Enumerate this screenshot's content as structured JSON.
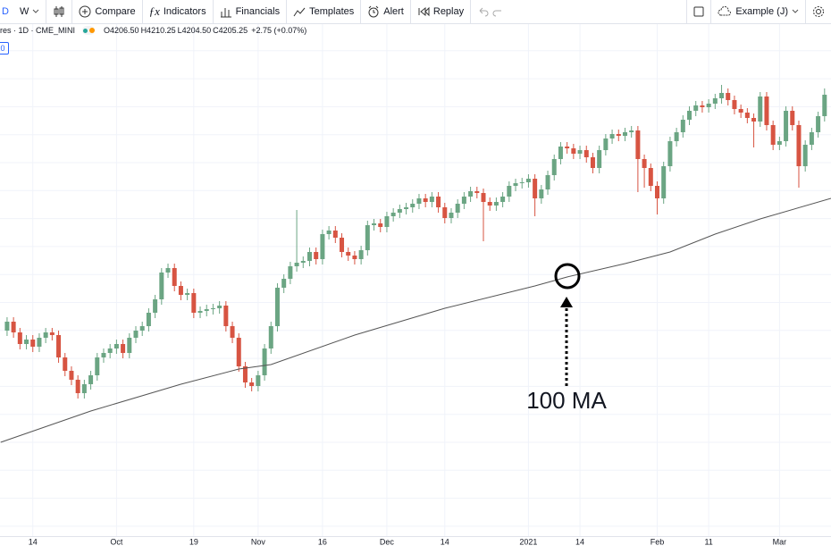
{
  "toolbar": {
    "interval_day": "D",
    "interval_week": "W",
    "compare": "Compare",
    "indicators": "Indicators",
    "financials": "Financials",
    "templates": "Templates",
    "alert": "Alert",
    "replay": "Replay",
    "layout": "Example (J)"
  },
  "legend": {
    "symbol": "res · 1D · CME_MINI",
    "open": "O4206.50",
    "high": "H4210.25",
    "low": "L4204.50",
    "close": "C4205.25",
    "change": "+2.75 (+0.07%)",
    "badge": "0"
  },
  "chart_data": {
    "type": "candlestick",
    "up_color": "#6ba583",
    "down_color": "#d75442",
    "xlim": [
      -1.1,
      128
    ],
    "ylim": [
      2960,
      4110
    ],
    "xticks": [
      {
        "value": 4,
        "label": "14"
      },
      {
        "value": 17,
        "label": "Oct"
      },
      {
        "value": 29,
        "label": "19"
      },
      {
        "value": 39,
        "label": "Nov"
      },
      {
        "value": 49,
        "label": "16"
      },
      {
        "value": 59,
        "label": "Dec"
      },
      {
        "value": 68,
        "label": "14"
      },
      {
        "value": 81,
        "label": "2021"
      },
      {
        "value": 89,
        "label": "14"
      },
      {
        "value": 101,
        "label": "Feb"
      },
      {
        "value": 109,
        "label": "11"
      },
      {
        "value": 120,
        "label": "Mar"
      }
    ],
    "grid": true,
    "open": [
      3420,
      3440,
      3416,
      3390,
      3400,
      3384,
      3404,
      3416,
      3410,
      3360,
      3330,
      3310,
      3280,
      3300,
      3320,
      3360,
      3370,
      3380,
      3390,
      3370,
      3404,
      3420,
      3430,
      3460,
      3490,
      3550,
      3560,
      3520,
      3500,
      3504,
      3460,
      3464,
      3468,
      3470,
      3476,
      3430,
      3404,
      3340,
      3304,
      3296,
      3320,
      3380,
      3430,
      3516,
      3536,
      3564,
      3572,
      3576,
      3596,
      3580,
      3636,
      3644,
      3628,
      3596,
      3588,
      3580,
      3600,
      3656,
      3660,
      3652,
      3676,
      3684,
      3692,
      3696,
      3704,
      3716,
      3708,
      3720,
      3696,
      3672,
      3684,
      3704,
      3720,
      3732,
      3728,
      3708,
      3700,
      3708,
      3720,
      3744,
      3750,
      3752,
      3760,
      3716,
      3736,
      3768,
      3804,
      3832,
      3828,
      3816,
      3824,
      3808,
      3784,
      3824,
      3850,
      3860,
      3856,
      3864,
      3868,
      3804,
      3784,
      3744,
      3716,
      3788,
      3844,
      3864,
      3892,
      3912,
      3924,
      3920,
      3928,
      3940,
      3952,
      3936,
      3916,
      3908,
      3896,
      3888,
      3944,
      3880,
      3836,
      3844,
      3912,
      3880,
      3788,
      3836,
      3864,
      3900
    ],
    "high": [
      3450,
      3450,
      3426,
      3410,
      3410,
      3414,
      3426,
      3426,
      3420,
      3370,
      3340,
      3320,
      3310,
      3330,
      3370,
      3380,
      3390,
      3400,
      3400,
      3414,
      3430,
      3440,
      3470,
      3500,
      3560,
      3570,
      3570,
      3530,
      3514,
      3514,
      3474,
      3478,
      3480,
      3486,
      3486,
      3440,
      3414,
      3350,
      3314,
      3330,
      3390,
      3440,
      3526,
      3546,
      3574,
      3690,
      3586,
      3606,
      3606,
      3646,
      3654,
      3654,
      3638,
      3606,
      3598,
      3610,
      3666,
      3670,
      3670,
      3686,
      3694,
      3702,
      3706,
      3714,
      3726,
      3726,
      3730,
      3730,
      3706,
      3694,
      3714,
      3730,
      3742,
      3742,
      3738,
      3718,
      3718,
      3730,
      3754,
      3760,
      3762,
      3770,
      3770,
      3746,
      3778,
      3814,
      3842,
      3842,
      3838,
      3834,
      3834,
      3818,
      3834,
      3860,
      3870,
      3870,
      3874,
      3878,
      3878,
      3814,
      3794,
      3754,
      3798,
      3854,
      3874,
      3902,
      3922,
      3934,
      3934,
      3938,
      3950,
      3970,
      3962,
      3946,
      3926,
      3918,
      3906,
      3954,
      3954,
      3890,
      3854,
      3922,
      3922,
      3890,
      3846,
      3874,
      3910,
      3962
    ],
    "low": [
      3408,
      3404,
      3378,
      3378,
      3372,
      3372,
      3392,
      3398,
      3348,
      3318,
      3298,
      3268,
      3268,
      3288,
      3308,
      3348,
      3358,
      3368,
      3358,
      3358,
      3392,
      3408,
      3418,
      3448,
      3478,
      3538,
      3508,
      3488,
      3488,
      3448,
      3448,
      3452,
      3456,
      3458,
      3418,
      3392,
      3328,
      3292,
      3284,
      3284,
      3308,
      3368,
      3418,
      3504,
      3524,
      3552,
      3560,
      3564,
      3568,
      3568,
      3624,
      3616,
      3584,
      3576,
      3568,
      3568,
      3588,
      3644,
      3640,
      3640,
      3664,
      3672,
      3680,
      3684,
      3692,
      3696,
      3696,
      3684,
      3660,
      3660,
      3672,
      3692,
      3708,
      3716,
      3620,
      3688,
      3688,
      3696,
      3708,
      3732,
      3738,
      3740,
      3676,
      3704,
      3724,
      3756,
      3792,
      3816,
      3804,
      3804,
      3796,
      3772,
      3772,
      3812,
      3838,
      3844,
      3844,
      3852,
      3730,
      3740,
      3732,
      3680,
      3704,
      3776,
      3832,
      3852,
      3880,
      3900,
      3908,
      3908,
      3916,
      3928,
      3924,
      3904,
      3896,
      3884,
      3830,
      3876,
      3868,
      3824,
      3824,
      3832,
      3868,
      3740,
      3776,
      3824,
      3852,
      3888
    ],
    "close": [
      3440,
      3416,
      3390,
      3400,
      3384,
      3404,
      3416,
      3410,
      3360,
      3330,
      3310,
      3280,
      3300,
      3320,
      3360,
      3370,
      3380,
      3390,
      3370,
      3404,
      3420,
      3430,
      3460,
      3490,
      3550,
      3560,
      3520,
      3500,
      3504,
      3460,
      3464,
      3468,
      3470,
      3476,
      3430,
      3404,
      3340,
      3304,
      3296,
      3320,
      3380,
      3430,
      3516,
      3536,
      3564,
      3572,
      3576,
      3596,
      3580,
      3636,
      3644,
      3628,
      3596,
      3588,
      3580,
      3600,
      3656,
      3660,
      3652,
      3676,
      3684,
      3692,
      3696,
      3704,
      3716,
      3708,
      3720,
      3696,
      3672,
      3684,
      3704,
      3720,
      3732,
      3728,
      3708,
      3700,
      3708,
      3720,
      3744,
      3750,
      3752,
      3760,
      3716,
      3736,
      3768,
      3804,
      3832,
      3828,
      3816,
      3824,
      3808,
      3784,
      3824,
      3850,
      3860,
      3856,
      3864,
      3868,
      3804,
      3784,
      3744,
      3716,
      3788,
      3844,
      3864,
      3892,
      3912,
      3924,
      3920,
      3928,
      3940,
      3952,
      3936,
      3916,
      3908,
      3896,
      3888,
      3944,
      3880,
      3836,
      3844,
      3912,
      3880,
      3788,
      3836,
      3864,
      3900,
      3948
    ],
    "moving_average": {
      "color": "#555555",
      "x": [
        -1,
        13,
        27,
        36,
        41,
        54,
        68,
        82,
        87,
        96,
        103,
        110,
        117,
        128
      ],
      "values": [
        3170,
        3240,
        3300,
        3334,
        3344,
        3410,
        3470,
        3520,
        3540,
        3570,
        3596,
        3636,
        3670,
        3716
      ]
    },
    "annotation": "100 MA"
  }
}
